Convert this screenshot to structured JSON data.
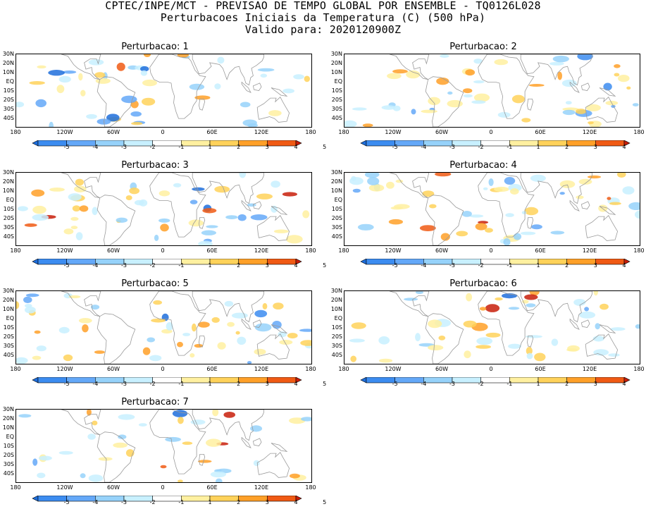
{
  "header": {
    "line1": "CPTEC/INPE/MCT - PREVISAO DE TEMPO GLOBAL POR ENSEMBLE - TQ0126L028",
    "line2": "Perturbacoes Iniciais da Temperatura (C) (500 hPa)",
    "line3": "Valido para: 2020120900Z"
  },
  "lat_labels": [
    "30N",
    "20N",
    "10N",
    "EQ",
    "10S",
    "20S",
    "30S",
    "40S"
  ],
  "lon_labels": [
    "180",
    "120W",
    "60W",
    "0",
    "60E",
    "120E",
    "180"
  ],
  "colorbar": {
    "labels": [
      "-5",
      "-4",
      "-3",
      "-2",
      "-1",
      "1",
      "2",
      "3",
      "4",
      "5"
    ],
    "colors": [
      "#1e6edc",
      "#3c8cf0",
      "#64a8f8",
      "#96d2fa",
      "#c8f0ff",
      "#ffffff",
      "#fff0a0",
      "#ffd25a",
      "#ffa028",
      "#f05a14",
      "#c81e0a"
    ]
  },
  "panels": [
    {
      "title": "Perturbacao: 1"
    },
    {
      "title": "Perturbacao: 2"
    },
    {
      "title": "Perturbacao: 3"
    },
    {
      "title": "Perturbacao: 4"
    },
    {
      "title": "Perturbacao: 5"
    },
    {
      "title": "Perturbacao: 6"
    },
    {
      "title": "Perturbacao: 7"
    }
  ]
}
